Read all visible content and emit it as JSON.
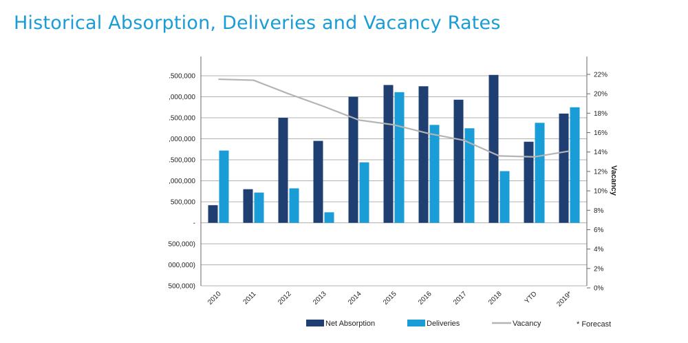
{
  "page_title": "Historical Absorption, Deliveries and Vacancy Rates",
  "footnote": "* Forecast",
  "colors": {
    "title": "#1a9cd6",
    "net_absorption": "#1f3f73",
    "deliveries": "#1a9cd6",
    "vacancy": "#b4b4b4",
    "grid": "#b0b0b0"
  },
  "chart_data": {
    "type": "bar",
    "categories": [
      "2010",
      "2011",
      "2012",
      "2013",
      "2014",
      "2015",
      "2016",
      "2017",
      "2018",
      "YTD",
      "2019*"
    ],
    "series": [
      {
        "name": "Net Absorption",
        "type": "bar",
        "axis": "left",
        "values": [
          420000,
          800000,
          2500000,
          1950000,
          3000000,
          3280000,
          3250000,
          2930000,
          3520000,
          1930000,
          2600000
        ]
      },
      {
        "name": "Deliveries",
        "type": "bar",
        "axis": "left",
        "values": [
          1720000,
          720000,
          820000,
          250000,
          1440000,
          3110000,
          2330000,
          2250000,
          1230000,
          2380000,
          2750000
        ]
      },
      {
        "name": "Vacancy",
        "type": "line",
        "axis": "right",
        "values": [
          0.215,
          0.214,
          0.2,
          0.187,
          0.173,
          0.168,
          0.159,
          0.152,
          0.136,
          0.135,
          0.141
        ]
      }
    ],
    "y_left_ticks": [
      ".500,000",
      ",000,000",
      ".500,000",
      ",000,000",
      ".500,000",
      ",000,000",
      "500,000",
      "-",
      "500,000)",
      "000,000)",
      "500,000)"
    ],
    "y_left_tick_values": [
      3500000,
      3000000,
      2500000,
      2000000,
      1500000,
      1000000,
      500000,
      0,
      -500000,
      -1000000,
      -1500000
    ],
    "ylim_left": [
      -1500000,
      3500000
    ],
    "y_right_ticks": [
      "22%",
      "20%",
      "18%",
      "16%",
      "14%",
      "12%",
      "10%",
      "8%",
      "6%",
      "4%",
      "2%",
      "0%"
    ],
    "ylim_right": [
      0,
      0.22
    ],
    "y_right_label": "Vacancy",
    "grid": true,
    "legend_position": "bottom"
  }
}
